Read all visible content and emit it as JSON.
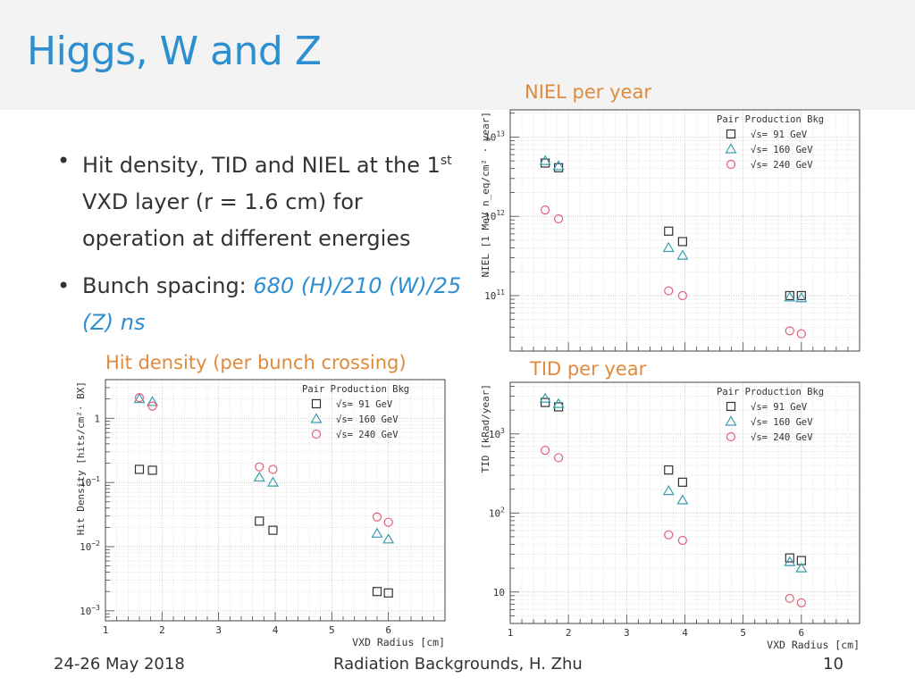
{
  "slide": {
    "title": "Higgs, W and Z",
    "bullets": [
      {
        "pre": "Hit density, TID and NIEL at the 1",
        "sup": "st",
        "post": " VXD layer (r = 1.6 cm) for operation at different energies"
      },
      {
        "pre": "Bunch spacing: ",
        "highlight": "680 (H)/210 (W)/25 (Z) ns"
      }
    ],
    "accent_color": "#2e8fd0",
    "caption_color": "#e08a3c"
  },
  "footer": {
    "date": "24-26 May 2018",
    "center": "Radiation Backgrounds, H. Zhu",
    "page": "10"
  },
  "captions": {
    "niel": "NIEL per year",
    "tid": "TID per year",
    "hit": "Hit density (per bunch crossing)"
  },
  "chart_data": [
    {
      "id": "hit",
      "type": "scatter",
      "log_y": true,
      "xlim": [
        1,
        7
      ],
      "ylim": [
        0.0007,
        4
      ],
      "x_ticks": [
        "1",
        "2",
        "3",
        "4",
        "5",
        "6"
      ],
      "y_ticks": [
        {
          "v": 1,
          "label": "1"
        },
        {
          "v": 0.1,
          "label": "10",
          "exp": "−1"
        },
        {
          "v": 0.01,
          "label": "10",
          "exp": "−2"
        },
        {
          "v": 0.001,
          "label": "10",
          "exp": "−3"
        }
      ],
      "xlabel": "VXD Radius [cm]",
      "ylabel": "Hit Density [hits/cm²· BX]",
      "legend_title": "Pair Production Bkg",
      "legend_placement": "top-right",
      "grid": true,
      "series": [
        {
          "name": "√s= 91 GeV",
          "marker": "square",
          "color": "#333333",
          "x": [
            1.6,
            1.83,
            3.72,
            3.96,
            5.8,
            6.0
          ],
          "y": [
            0.16,
            0.155,
            0.025,
            0.018,
            0.002,
            0.0019
          ]
        },
        {
          "name": "√s= 160 GeV",
          "marker": "triangle",
          "color": "#3a9fb0",
          "x": [
            1.6,
            1.83,
            3.72,
            3.96,
            5.8,
            6.0
          ],
          "y": [
            2.0,
            1.8,
            0.12,
            0.1,
            0.016,
            0.013
          ]
        },
        {
          "name": "√s= 240 GeV",
          "marker": "circle",
          "color": "#e0607a",
          "x": [
            1.6,
            1.83,
            3.72,
            3.96,
            5.8,
            6.0
          ],
          "y": [
            2.1,
            1.55,
            0.175,
            0.16,
            0.029,
            0.024
          ]
        }
      ]
    },
    {
      "id": "niel",
      "type": "scatter",
      "log_y": true,
      "xlim": [
        1,
        7
      ],
      "ylim": [
        20000000000.0,
        22000000000000.0
      ],
      "x_ticks": [],
      "y_ticks": [
        {
          "v": 10000000000000.0,
          "label": "10",
          "exp": "13"
        },
        {
          "v": 1000000000000.0,
          "label": "10",
          "exp": "12"
        },
        {
          "v": 100000000000.0,
          "label": "10",
          "exp": "11"
        }
      ],
      "xlabel": "",
      "ylabel": "NIEL [1 MeV n_eq/cm² · year]",
      "legend_title": "Pair Production Bkg",
      "legend_placement": "top-right",
      "grid": true,
      "series": [
        {
          "name": "√s= 91 GeV",
          "marker": "square",
          "color": "#333333",
          "x": [
            1.6,
            1.83,
            3.72,
            3.96,
            5.8,
            6.0
          ],
          "y": [
            4700000000000.0,
            4100000000000.0,
            650000000000.0,
            480000000000.0,
            100000000000.0,
            100000000000.0
          ]
        },
        {
          "name": "√s= 160 GeV",
          "marker": "triangle",
          "color": "#3a9fb0",
          "x": [
            1.6,
            1.83,
            3.72,
            3.96,
            5.8,
            6.0
          ],
          "y": [
            5000000000000.0,
            4300000000000.0,
            400000000000.0,
            320000000000.0,
            95000000000.0,
            93000000000.0
          ]
        },
        {
          "name": "√s= 240 GeV",
          "marker": "circle",
          "color": "#e0607a",
          "x": [
            1.6,
            1.83,
            3.72,
            3.96,
            5.8,
            6.0
          ],
          "y": [
            1200000000000.0,
            930000000000.0,
            115000000000.0,
            100000000000.0,
            36000000000.0,
            33000000000.0
          ]
        }
      ]
    },
    {
      "id": "tid",
      "type": "scatter",
      "log_y": true,
      "xlim": [
        1,
        7
      ],
      "ylim": [
        4,
        4500
      ],
      "x_ticks": [
        "1",
        "2",
        "3",
        "4",
        "5",
        "6"
      ],
      "y_ticks": [
        {
          "v": 1000,
          "label": "10",
          "exp": "3"
        },
        {
          "v": 100,
          "label": "10",
          "exp": "2"
        },
        {
          "v": 10,
          "label": "10"
        }
      ],
      "xlabel": "VXD Radius [cm]",
      "ylabel": "TID [kRad/year]",
      "legend_title": "Pair Production Bkg",
      "legend_placement": "top-right",
      "grid": true,
      "series": [
        {
          "name": "√s= 91 GeV",
          "marker": "square",
          "color": "#333333",
          "x": [
            1.6,
            1.83,
            3.72,
            3.96,
            5.8,
            6.0
          ],
          "y": [
            2500,
            2200,
            350,
            245,
            27,
            25
          ]
        },
        {
          "name": "√s= 160 GeV",
          "marker": "triangle",
          "color": "#3a9fb0",
          "x": [
            1.6,
            1.83,
            3.72,
            3.96,
            5.8,
            6.0
          ],
          "y": [
            2800,
            2400,
            190,
            145,
            24,
            20
          ]
        },
        {
          "name": "√s= 240 GeV",
          "marker": "circle",
          "color": "#e0607a",
          "x": [
            1.6,
            1.83,
            3.72,
            3.96,
            5.8,
            6.0
          ],
          "y": [
            620,
            500,
            53,
            45,
            8.3,
            7.3
          ]
        }
      ]
    }
  ]
}
